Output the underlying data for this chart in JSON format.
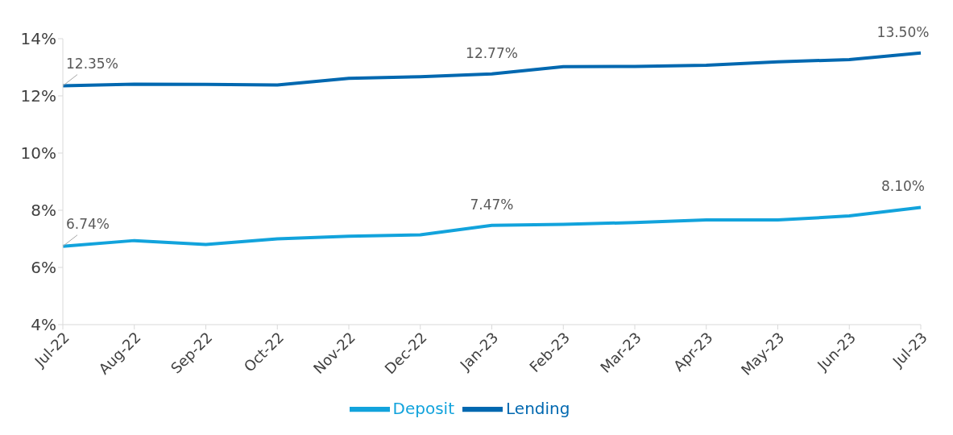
{
  "chart_data": {
    "type": "line",
    "categories": [
      "Jul-22",
      "Aug-22",
      "Sep-22",
      "Oct-22",
      "Nov-22",
      "Dec-22",
      "Jan-23",
      "Feb-23",
      "Mar-23",
      "Apr-23",
      "May-23",
      "Jun-23",
      "Jul-23"
    ],
    "series": [
      {
        "name": "Deposit",
        "color": "#12a3dc",
        "values": [
          6.74,
          6.94,
          6.8,
          7.0,
          7.09,
          7.14,
          7.47,
          7.51,
          7.57,
          7.66,
          7.66,
          7.8,
          8.1
        ],
        "value_labels": [
          "6.74%",
          null,
          null,
          null,
          null,
          null,
          "7.47%",
          null,
          null,
          null,
          null,
          null,
          "8.10%"
        ]
      },
      {
        "name": "Lending",
        "color": "#0068b0",
        "values": [
          12.35,
          12.41,
          12.4,
          12.38,
          12.61,
          12.67,
          12.77,
          13.02,
          13.03,
          13.07,
          13.19,
          13.27,
          13.5
        ],
        "value_labels": [
          "12.35%",
          null,
          null,
          null,
          null,
          null,
          "12.77%",
          null,
          null,
          null,
          null,
          null,
          "13.50%"
        ]
      }
    ],
    "ylim": [
      4,
      14
    ],
    "yticks": [
      {
        "value": 4,
        "label": "4%"
      },
      {
        "value": 6,
        "label": "6%"
      },
      {
        "value": 8,
        "label": "8%"
      },
      {
        "value": 10,
        "label": "10%"
      },
      {
        "value": 12,
        "label": "12%"
      },
      {
        "value": 14,
        "label": "14%"
      }
    ],
    "grid": false,
    "legend": "bottom",
    "marker": "none",
    "line_style": "solid"
  }
}
